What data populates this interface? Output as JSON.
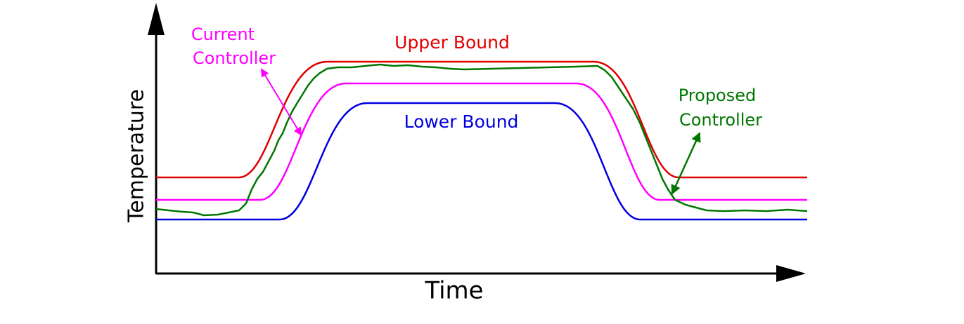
{
  "axes": {
    "x_label": "Time",
    "y_label": "Temperature"
  },
  "labels": {
    "upper_bound": "Upper Bound",
    "lower_bound": "Lower Bound",
    "current_controller": [
      "Current",
      "Controller"
    ],
    "proposed_controller": [
      "Proposed",
      "Controller"
    ]
  }
}
